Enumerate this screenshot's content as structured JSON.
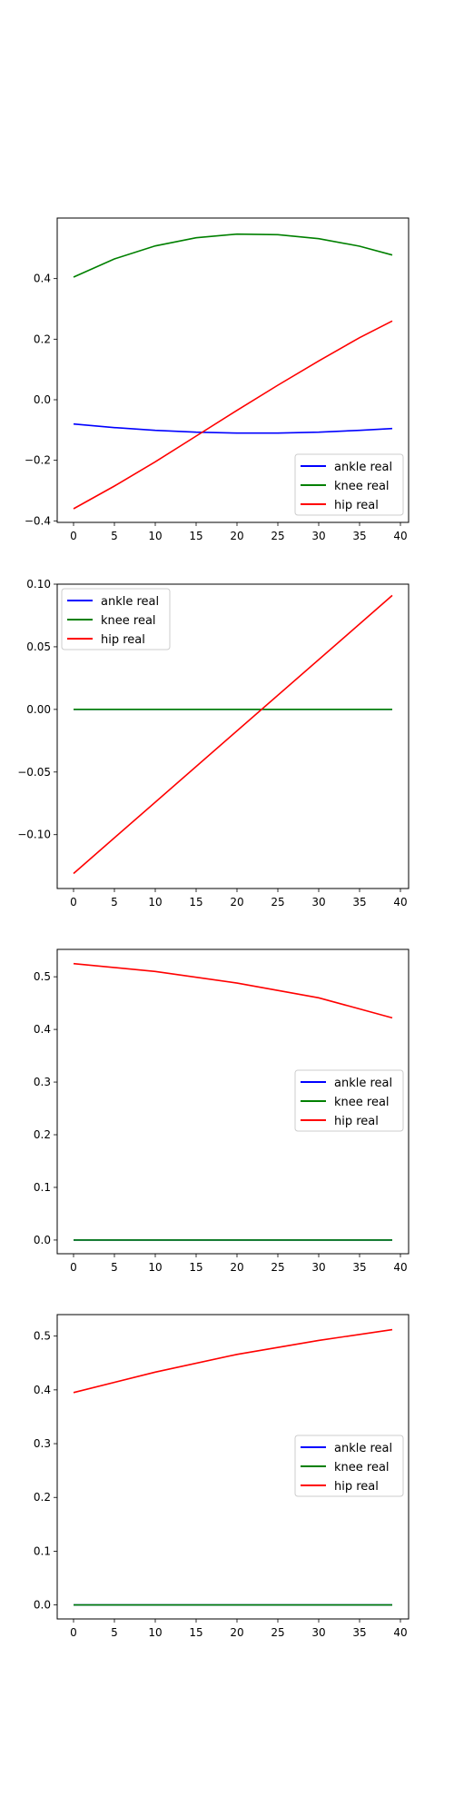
{
  "colors": {
    "ankle real": "#0000ff",
    "knee real": "#008000",
    "hip real": "#ff0000"
  },
  "chart_data": [
    {
      "type": "line",
      "xlim": [
        -2,
        41
      ],
      "ylim": [
        -0.405,
        0.6
      ],
      "x_ticks": [
        0,
        5,
        10,
        15,
        20,
        25,
        30,
        35,
        40
      ],
      "y_ticks": [
        -0.4,
        -0.2,
        0.0,
        0.2,
        0.4
      ],
      "y_tick_labels": [
        "−0.4",
        "−0.2",
        "0.0",
        "0.2",
        "0.4"
      ],
      "legend": "lower-right",
      "series": [
        {
          "name": "ankle real",
          "color": "#0000ff",
          "x": [
            0,
            5,
            10,
            15,
            20,
            25,
            30,
            35,
            39
          ],
          "values": [
            -0.08,
            -0.092,
            -0.101,
            -0.107,
            -0.11,
            -0.11,
            -0.107,
            -0.101,
            -0.095
          ]
        },
        {
          "name": "knee real",
          "color": "#008000",
          "x": [
            0,
            5,
            10,
            15,
            20,
            25,
            30,
            35,
            39
          ],
          "values": [
            0.405,
            0.465,
            0.508,
            0.535,
            0.547,
            0.545,
            0.532,
            0.507,
            0.478
          ]
        },
        {
          "name": "hip real",
          "color": "#ff0000",
          "x": [
            0,
            5,
            10,
            15,
            20,
            25,
            30,
            35,
            39
          ],
          "values": [
            -0.36,
            -0.285,
            -0.205,
            -0.12,
            -0.035,
            0.048,
            0.128,
            0.205,
            0.26
          ]
        }
      ]
    },
    {
      "type": "line",
      "xlim": [
        -2,
        41
      ],
      "ylim": [
        -0.143,
        0.1
      ],
      "x_ticks": [
        0,
        5,
        10,
        15,
        20,
        25,
        30,
        35,
        40
      ],
      "y_ticks": [
        -0.1,
        -0.05,
        0.0,
        0.05,
        0.1
      ],
      "y_tick_labels": [
        "−0.10",
        "−0.05",
        "0.00",
        "0.05",
        "0.10"
      ],
      "legend": "upper-left",
      "series": [
        {
          "name": "ankle real",
          "color": "#0000ff",
          "x": [
            0,
            39
          ],
          "values": [
            0,
            0
          ]
        },
        {
          "name": "knee real",
          "color": "#008000",
          "x": [
            0,
            39
          ],
          "values": [
            0,
            0
          ]
        },
        {
          "name": "hip real",
          "color": "#ff0000",
          "x": [
            0,
            39
          ],
          "values": [
            -0.131,
            0.091
          ]
        }
      ]
    },
    {
      "type": "line",
      "xlim": [
        -2,
        41
      ],
      "ylim": [
        -0.026,
        0.552
      ],
      "x_ticks": [
        0,
        5,
        10,
        15,
        20,
        25,
        30,
        35,
        40
      ],
      "y_ticks": [
        0.0,
        0.1,
        0.2,
        0.3,
        0.4,
        0.5
      ],
      "y_tick_labels": [
        "0.0",
        "0.1",
        "0.2",
        "0.3",
        "0.4",
        "0.5"
      ],
      "legend": "center-right",
      "series": [
        {
          "name": "ankle real",
          "color": "#0000ff",
          "x": [
            0,
            39
          ],
          "values": [
            0,
            0
          ]
        },
        {
          "name": "knee real",
          "color": "#008000",
          "x": [
            0,
            39
          ],
          "values": [
            0,
            0
          ]
        },
        {
          "name": "hip real",
          "color": "#ff0000",
          "x": [
            0,
            10,
            20,
            30,
            39
          ],
          "values": [
            0.525,
            0.51,
            0.488,
            0.46,
            0.422
          ]
        }
      ]
    },
    {
      "type": "line",
      "xlim": [
        -2,
        41
      ],
      "ylim": [
        -0.026,
        0.54
      ],
      "x_ticks": [
        0,
        5,
        10,
        15,
        20,
        25,
        30,
        35,
        40
      ],
      "y_ticks": [
        0.0,
        0.1,
        0.2,
        0.3,
        0.4,
        0.5
      ],
      "y_tick_labels": [
        "0.0",
        "0.1",
        "0.2",
        "0.3",
        "0.4",
        "0.5"
      ],
      "legend": "center-right",
      "series": [
        {
          "name": "ankle real",
          "color": "#0000ff",
          "x": [
            0,
            39
          ],
          "values": [
            0,
            0
          ]
        },
        {
          "name": "knee real",
          "color": "#008000",
          "x": [
            0,
            39
          ],
          "values": [
            0,
            0
          ]
        },
        {
          "name": "hip real",
          "color": "#ff0000",
          "x": [
            0,
            10,
            20,
            30,
            39
          ],
          "values": [
            0.395,
            0.433,
            0.466,
            0.492,
            0.512
          ]
        }
      ]
    }
  ]
}
